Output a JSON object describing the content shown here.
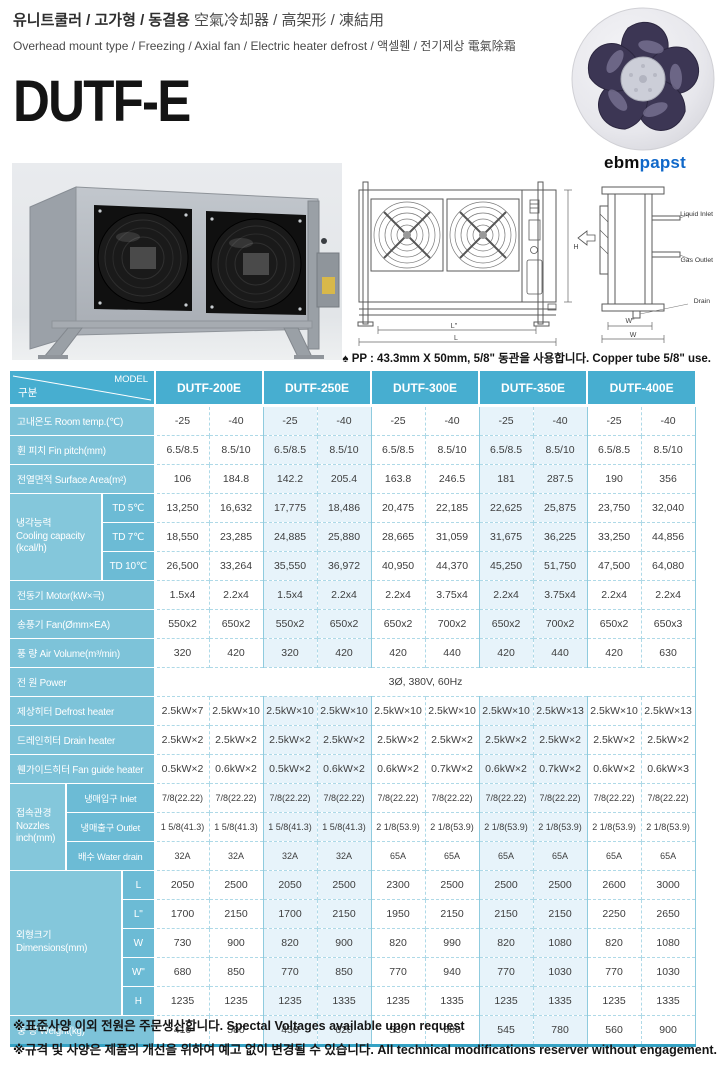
{
  "page": {
    "header": {
      "title_ko": "유니트쿨러 / 고가형 / 동결용",
      "title_hanja": " 空氣冷却器 / 高架形 / 凍結用",
      "subtitle": "Overhead mount type / Freezing / Axial fan / Electric heater defrost / 액셀휀 / 전기제상 電氣除霜",
      "model_name": "DUTF-E",
      "brand_black": "ebm",
      "brand_blue": "papst"
    },
    "drawing": {
      "labels": {
        "liquid_inlet": "Liquid Inlet",
        "gas_outlet": "Gas Outlet",
        "drain": "Drain",
        "dim_l": "L",
        "dim_l2": "L\"",
        "dim_h": "H",
        "dim_w": "W",
        "dim_w2": "W\""
      }
    },
    "note": "♠ PP : 43.3mm X 50mm, 5/8\" 동관을 사용합니다. Copper tube 5/8\" use.",
    "footer": [
      "※표준사양 이외 전원은 주문생산합니다. Spectal Voltages available upon request",
      "※규격 및 사양은 제품의 개선을 위하여 예고 없이 변경될 수 있습니다. All technical modifications reserver without engagement."
    ],
    "colors": {
      "header_blue": "#47aed0",
      "label_blue": "#7dc3d9",
      "sublabel_blue": "#6cbbd5",
      "zebra_tint": "#e7f3fa",
      "grid_border": "#8fcbde",
      "bottom_rule": "#35a2c4",
      "brand_blue": "#1068c9"
    }
  },
  "table": {
    "corner": {
      "top": "MODEL",
      "bottom": "구분"
    },
    "models": [
      "DUTF-200E",
      "DUTF-250E",
      "DUTF-300E",
      "DUTF-350E",
      "DUTF-400E"
    ],
    "rows": [
      {
        "label": "고내온도 Room temp.(℃)",
        "cells": [
          "-25",
          "-40",
          "-25",
          "-40",
          "-25",
          "-40",
          "-25",
          "-40",
          "-25",
          "-40"
        ]
      },
      {
        "label": "휜 피치 Fin pitch(mm)",
        "cells": [
          "6.5/8.5",
          "8.5/10",
          "6.5/8.5",
          "8.5/10",
          "6.5/8.5",
          "8.5/10",
          "6.5/8.5",
          "8.5/10",
          "6.5/8.5",
          "8.5/10"
        ]
      },
      {
        "label": "전열면적 Surface Area(m²)",
        "cells": [
          "106",
          "184.8",
          "142.2",
          "205.4",
          "163.8",
          "246.5",
          "181",
          "287.5",
          "190",
          "356"
        ]
      },
      {
        "group": {
          "lines": [
            "냉각능력",
            "Cooling capacity",
            "(kcal/h)"
          ],
          "mainspan": 2,
          "subrows": [
            {
              "sub": "TD 5℃",
              "cells": [
                "13,250",
                "16,632",
                "17,775",
                "18,486",
                "20,475",
                "22,185",
                "22,625",
                "25,875",
                "23,750",
                "32,040"
              ]
            },
            {
              "sub": "TD 7℃",
              "cells": [
                "18,550",
                "23,285",
                "24,885",
                "25,880",
                "28,665",
                "31,059",
                "31,675",
                "36,225",
                "33,250",
                "44,856"
              ]
            },
            {
              "sub": "TD 10℃",
              "cells": [
                "26,500",
                "33,264",
                "35,550",
                "36,972",
                "40,950",
                "44,370",
                "45,250",
                "51,750",
                "47,500",
                "64,080"
              ]
            }
          ]
        }
      },
      {
        "label": "전동기 Motor(kW×극)",
        "cells": [
          "1.5x4",
          "2.2x4",
          "1.5x4",
          "2.2x4",
          "2.2x4",
          "3.75x4",
          "2.2x4",
          "3.75x4",
          "2.2x4",
          "2.2x4"
        ]
      },
      {
        "label": "송풍기 Fan(Ømm×EA)",
        "cells": [
          "550x2",
          "650x2",
          "550x2",
          "650x2",
          "650x2",
          "700x2",
          "650x2",
          "700x2",
          "650x2",
          "650x3"
        ]
      },
      {
        "label": "풍 량 Air Volume(m³/min)",
        "cells": [
          "320",
          "420",
          "320",
          "420",
          "420",
          "440",
          "420",
          "440",
          "420",
          "630"
        ]
      },
      {
        "label": "전 원 Power",
        "span": "3Ø, 380V, 60Hz"
      },
      {
        "label": "제상히터 Defrost heater",
        "cells": [
          "2.5kW×7",
          "2.5kW×10",
          "2.5kW×10",
          "2.5kW×10",
          "2.5kW×10",
          "2.5kW×10",
          "2.5kW×10",
          "2.5kW×13",
          "2.5kW×10",
          "2.5kW×13"
        ]
      },
      {
        "label": "드레인히터 Drain heater",
        "cells": [
          "2.5kW×2",
          "2.5kW×2",
          "2.5kW×2",
          "2.5kW×2",
          "2.5kW×2",
          "2.5kW×2",
          "2.5kW×2",
          "2.5kW×2",
          "2.5kW×2",
          "2.5kW×2"
        ]
      },
      {
        "label": "휀가이드히터 Fan guide heater",
        "cells": [
          "0.5kW×2",
          "0.6kW×2",
          "0.5kW×2",
          "0.6kW×2",
          "0.6kW×2",
          "0.7kW×2",
          "0.6kW×2",
          "0.7kW×2",
          "0.6kW×2",
          "0.6kW×3"
        ]
      },
      {
        "group": {
          "lines": [
            "접속관경",
            "Nozzles",
            "inch(mm)"
          ],
          "mainspan": 1,
          "small": true,
          "subrows": [
            {
              "sub": "냉매입구 Inlet",
              "cells": [
                "7/8(22.22)",
                "7/8(22.22)",
                "7/8(22.22)",
                "7/8(22.22)",
                "7/8(22.22)",
                "7/8(22.22)",
                "7/8(22.22)",
                "7/8(22.22)",
                "7/8(22.22)",
                "7/8(22.22)"
              ]
            },
            {
              "sub": "냉매출구 Outlet",
              "cells": [
                "1 5/8(41.3)",
                "1 5/8(41.3)",
                "1 5/8(41.3)",
                "1 5/8(41.3)",
                "2 1/8(53.9)",
                "2 1/8(53.9)",
                "2 1/8(53.9)",
                "2 1/8(53.9)",
                "2 1/8(53.9)",
                "2 1/8(53.9)"
              ]
            },
            {
              "sub": "배수 Water drain",
              "cells": [
                "32A",
                "32A",
                "32A",
                "32A",
                "65A",
                "65A",
                "65A",
                "65A",
                "65A",
                "65A"
              ]
            }
          ]
        }
      },
      {
        "group": {
          "lines": [
            "외형크기",
            "Dimensions(mm)"
          ],
          "mainspan": 3,
          "subrows": [
            {
              "sub": "L",
              "cells": [
                "2050",
                "2500",
                "2050",
                "2500",
                "2300",
                "2500",
                "2500",
                "2500",
                "2600",
                "3000"
              ]
            },
            {
              "sub": "L\"",
              "cells": [
                "1700",
                "2150",
                "1700",
                "2150",
                "1950",
                "2150",
                "2150",
                "2150",
                "2250",
                "2650"
              ]
            },
            {
              "sub": "W",
              "cells": [
                "730",
                "900",
                "820",
                "900",
                "820",
                "990",
                "820",
                "1080",
                "820",
                "1080"
              ]
            },
            {
              "sub": "W\"",
              "cells": [
                "680",
                "850",
                "770",
                "850",
                "770",
                "940",
                "770",
                "1030",
                "770",
                "1030"
              ]
            },
            {
              "sub": "H",
              "cells": [
                "1235",
                "1235",
                "1235",
                "1335",
                "1235",
                "1335",
                "1235",
                "1335",
                "1235",
                "1335"
              ]
            }
          ]
        }
      },
      {
        "label": "중 량 Weight(kg)",
        "cells": [
          "410",
          "580",
          "450",
          "620",
          "530",
          "680",
          "545",
          "780",
          "560",
          "900"
        ]
      }
    ]
  }
}
